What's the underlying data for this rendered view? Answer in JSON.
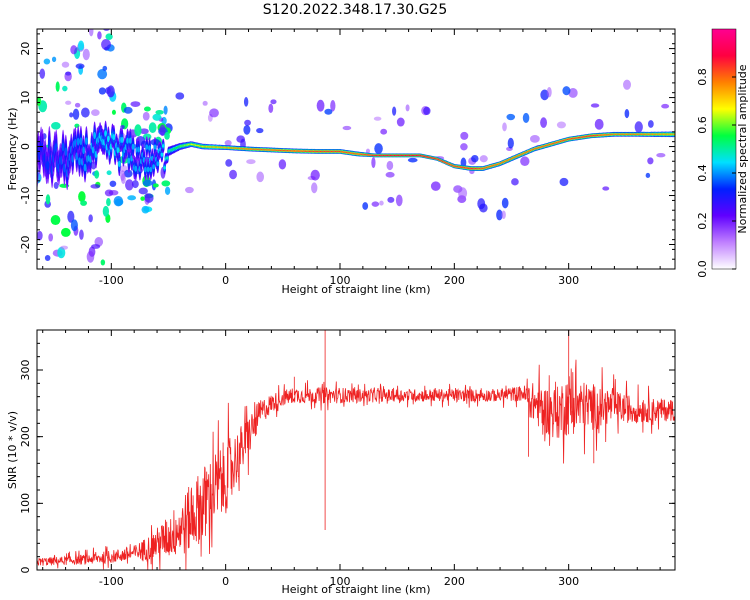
{
  "figure_title": "S120.2022.348.17.30.G25",
  "chart_data": [
    {
      "type": "heatmap",
      "name": "spectrogram",
      "xlabel": "Height of straight line (km)",
      "ylabel": "Frequency (Hz)",
      "xlim": [
        -165,
        393
      ],
      "ylim": [
        -25,
        24
      ],
      "xticks": [
        -100,
        0,
        100,
        200,
        300
      ],
      "yticks": [
        -20,
        -10,
        0,
        10,
        20
      ],
      "xtick_labels": [
        "-100",
        "0",
        "100",
        "200",
        "300"
      ],
      "ytick_labels": [
        "-20",
        "-10",
        "0",
        "10",
        "20"
      ],
      "colorbar": {
        "label": "Normalized spectral amplitude",
        "range": [
          0,
          1
        ],
        "ticks": [
          0.0,
          0.2,
          0.4,
          0.6,
          0.8
        ],
        "tick_labels": [
          "0.0",
          "0.2",
          "0.4",
          "0.6",
          "0.8"
        ],
        "colormap": [
          "#ffffff",
          "#c080ff",
          "#6000ff",
          "#0020ff",
          "#00e0ff",
          "#00ff40",
          "#ffff00",
          "#ff8000",
          "#ff0040",
          "#ff0090"
        ]
      },
      "ridge": {
        "x": [
          -165,
          -140,
          -120,
          -100,
          -80,
          -60,
          -50,
          -40,
          -30,
          -20,
          0,
          20,
          40,
          60,
          80,
          100,
          115,
          130,
          150,
          170,
          185,
          200,
          215,
          225,
          240,
          255,
          270,
          285,
          300,
          320,
          340,
          360,
          393
        ],
        "freq": [
          -2,
          -3,
          -1,
          0,
          -2,
          -3,
          -1,
          0,
          0.5,
          0,
          -0.2,
          -0.5,
          -0.7,
          -0.9,
          -1,
          -1,
          -1.5,
          -1.8,
          -1.8,
          -1.8,
          -2.5,
          -4,
          -4.5,
          -4.5,
          -3.5,
          -2,
          -0.5,
          0.5,
          1.5,
          2.2,
          2.5,
          2.5,
          2.5
        ],
        "amplitude": [
          0.3,
          0.35,
          0.4,
          0.45,
          0.4,
          0.4,
          0.5,
          0.6,
          0.7,
          0.75,
          0.8,
          0.85,
          0.88,
          0.9,
          0.92,
          0.92,
          0.88,
          0.95,
          0.97,
          0.97,
          0.95,
          0.92,
          0.95,
          0.9,
          0.88,
          0.86,
          0.88,
          0.9,
          0.92,
          0.94,
          0.85,
          0.85,
          0.8
        ],
        "band_halfwidth_hz": [
          8,
          7,
          6,
          5,
          5,
          4,
          2,
          1.5,
          1.2,
          1.2,
          1,
          1,
          1,
          1,
          1,
          1,
          1,
          0.8,
          0.8,
          0.8,
          0.8,
          0.9,
          1,
          1,
          1,
          1,
          1,
          1,
          1,
          1,
          1,
          1,
          1.2
        ]
      }
    },
    {
      "type": "line",
      "name": "snr",
      "color": "#ee2222",
      "xlabel": "Height of straight line (km)",
      "ylabel": "SNR (10 * v/v)",
      "xlim": [
        -165,
        393
      ],
      "ylim": [
        0,
        360
      ],
      "xticks": [
        -100,
        0,
        100,
        200,
        300
      ],
      "yticks": [
        0,
        100,
        200,
        300
      ],
      "xtick_labels": [
        "-100",
        "0",
        "100",
        "200",
        "300"
      ],
      "ytick_labels": [
        "0",
        "100",
        "200",
        "300"
      ],
      "x": [
        -165,
        -140,
        -120,
        -100,
        -80,
        -65,
        -50,
        -35,
        -20,
        -10,
        0,
        10,
        20,
        30,
        40,
        50,
        60,
        80,
        100,
        120,
        140,
        160,
        180,
        200,
        220,
        240,
        260,
        270,
        280,
        290,
        300,
        310,
        320,
        340,
        360,
        393
      ],
      "mean": [
        12,
        14,
        16,
        20,
        25,
        35,
        50,
        70,
        100,
        120,
        140,
        170,
        200,
        235,
        250,
        258,
        262,
        262,
        262,
        262,
        262,
        262,
        262,
        262,
        262,
        262,
        265,
        250,
        240,
        235,
        250,
        245,
        245,
        245,
        240,
        240
      ],
      "spread": [
        8,
        8,
        10,
        12,
        15,
        25,
        40,
        60,
        70,
        70,
        70,
        50,
        40,
        25,
        18,
        15,
        15,
        15,
        15,
        12,
        12,
        12,
        12,
        12,
        12,
        12,
        15,
        40,
        45,
        50,
        60,
        50,
        45,
        30,
        25,
        20
      ],
      "spikes": [
        {
          "x": 87,
          "y": 360
        },
        {
          "x": 87,
          "y": 60
        },
        {
          "x": 60,
          "y": 290
        },
        {
          "x": 265,
          "y": 170
        },
        {
          "x": 300,
          "y": 360
        },
        {
          "x": 322,
          "y": 160
        }
      ]
    }
  ]
}
